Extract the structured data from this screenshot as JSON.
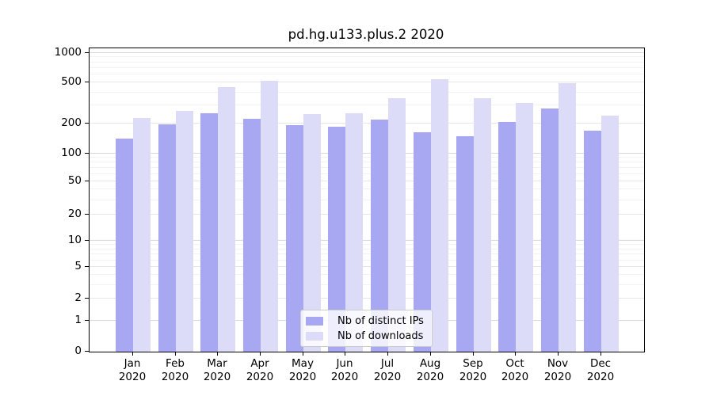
{
  "chart_data": {
    "type": "bar",
    "title": "pd.hg.u133.plus.2 2020",
    "categories": [
      "Jan",
      "Feb",
      "Mar",
      "Apr",
      "May",
      "Jun",
      "Jul",
      "Aug",
      "Sep",
      "Oct",
      "Nov",
      "Dec"
    ],
    "year_label": "2020",
    "series": [
      {
        "name": "Nb of distinct IPs",
        "color": "#a8a8f2",
        "values": [
          140,
          195,
          250,
          220,
          193,
          186,
          216,
          163,
          149,
          205,
          280,
          170
        ]
      },
      {
        "name": "Nb of downloads",
        "color": "#dcdcf8",
        "values": [
          225,
          265,
          450,
          525,
          248,
          252,
          350,
          540,
          355,
          315,
          490,
          238
        ]
      }
    ],
    "yticks": [
      0,
      1,
      2,
      5,
      10,
      20,
      50,
      100,
      200,
      500,
      1000
    ],
    "yscale": "log-like with 0 baseline",
    "ylim": [
      0,
      1100
    ],
    "grid": true,
    "legend_position": "lower center"
  },
  "colors": {
    "background": "#ffffff",
    "axis": "#000000",
    "bar_distinct_ips": "#a8a8f2",
    "bar_downloads": "#dcdcf8",
    "grid_major": "#d8d8d8",
    "grid_mid": "#e6e6e6",
    "grid_minor": "#f2f2f2",
    "legend_border": "#cccccc"
  }
}
